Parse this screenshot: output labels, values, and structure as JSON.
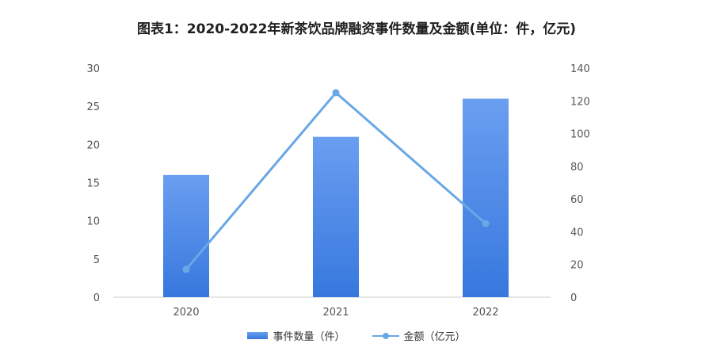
{
  "chart_data": {
    "type": "bar",
    "title": "图表1：2020-2022年新茶饮品牌融资事件数量及金额(单位：件，亿元)",
    "categories": [
      "2020",
      "2021",
      "2022"
    ],
    "series": [
      {
        "name": "事件数量（件）",
        "type": "bar",
        "axis": "left",
        "values": [
          16,
          21,
          26
        ]
      },
      {
        "name": "金额（亿元）",
        "type": "line",
        "axis": "right",
        "values": [
          17,
          125,
          45
        ]
      }
    ],
    "y_left": {
      "min": 0,
      "max": 30,
      "ticks": [
        0,
        5,
        10,
        15,
        20,
        25,
        30
      ]
    },
    "y_right": {
      "min": 0,
      "max": 140,
      "ticks": [
        0,
        20,
        40,
        60,
        80,
        100,
        120,
        140
      ]
    },
    "grid": false,
    "legend_position": "bottom",
    "colors": {
      "bar_top": "#6a9ef0",
      "bar_bottom": "#3778de",
      "line": "#6aa7e6"
    }
  }
}
